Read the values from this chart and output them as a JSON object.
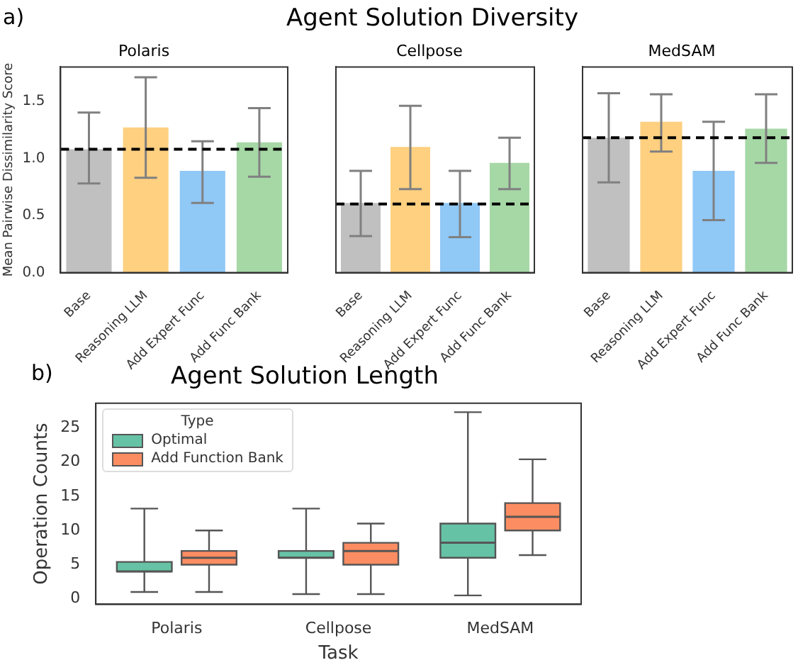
{
  "chart_data": [
    {
      "type": "bar",
      "annotations": [
        "a)",
        "Agent Solution Diversity"
      ],
      "title": "Polaris",
      "ylabel": "Mean Pairwise Dissimilarity Score",
      "categories": [
        "Base",
        "Reasoning LLM",
        "Add Expert Func",
        "Add Func Bank"
      ],
      "values": [
        1.08,
        1.27,
        0.89,
        1.14
      ],
      "colors": [
        "#c0c0c0",
        "#fed080",
        "#90c8f6",
        "#a6d8a6"
      ],
      "errors": [
        [
          0.78,
          1.4
        ],
        [
          0.83,
          1.71
        ],
        [
          0.61,
          1.15
        ],
        [
          0.84,
          1.44
        ]
      ],
      "ylim": [
        0,
        1.8
      ],
      "yticks": [
        {
          "value": 0,
          "label": "0.0"
        },
        {
          "value": 0.5,
          "label": "0.5"
        },
        {
          "value": 1,
          "label": "1.0"
        },
        {
          "value": 1.5,
          "label": "1.5"
        }
      ],
      "ref_lines": [
        {
          "axis": "y",
          "value": 1.08,
          "color": "#000000",
          "line_style": "dashed"
        }
      ]
    },
    {
      "type": "bar",
      "title": "Cellpose",
      "categories": [
        "Base",
        "Reasoning LLM",
        "Add Expert Func",
        "Add Func Bank"
      ],
      "values": [
        0.61,
        1.1,
        0.61,
        0.96
      ],
      "colors": [
        "#c0c0c0",
        "#fed080",
        "#90c8f6",
        "#a6d8a6"
      ],
      "errors": [
        [
          0.32,
          0.89
        ],
        [
          0.73,
          1.46
        ],
        [
          0.31,
          0.89
        ],
        [
          0.73,
          1.18
        ]
      ],
      "ylim": [
        0,
        1.8
      ],
      "yticks": [
        0,
        0.5,
        1,
        1.5
      ],
      "tick_labels": "x",
      "ref_lines": [
        {
          "axis": "y",
          "value": 0.6,
          "color": "#000000",
          "line_style": "dashed"
        }
      ]
    },
    {
      "type": "bar",
      "title": "MedSAM",
      "categories": [
        "Base",
        "Reasoning LLM",
        "Add Expert Func",
        "Add Func Bank"
      ],
      "values": [
        1.18,
        1.32,
        0.89,
        1.26
      ],
      "colors": [
        "#c0c0c0",
        "#fed080",
        "#90c8f6",
        "#a6d8a6"
      ],
      "errors": [
        [
          0.79,
          1.57
        ],
        [
          1.06,
          1.56
        ],
        [
          0.46,
          1.32
        ],
        [
          0.96,
          1.56
        ]
      ],
      "ylim": [
        0,
        1.8
      ],
      "yticks": [
        0,
        0.5,
        1,
        1.5
      ],
      "tick_labels": "x",
      "ref_lines": [
        {
          "axis": "y",
          "value": 1.18,
          "color": "#000000",
          "line_style": "dashed"
        }
      ]
    },
    {
      "type": "box",
      "annotations": [
        "b)"
      ],
      "title": "Agent Solution Length",
      "xlabel": "Task",
      "ylabel": "Operation Counts",
      "categories": [
        "Polaris",
        "Cellpose",
        "MedSAM"
      ],
      "legend_title": "Type",
      "legend": "top left",
      "ylim": [
        -0.8,
        28.6
      ],
      "yticks": [
        0,
        5,
        10,
        15,
        20,
        25
      ],
      "series": [
        {
          "name": "Optimal",
          "color": "#66c2a5",
          "boxes": [
            {
              "low": 1,
              "q1": 4,
              "median": 4,
              "q3": 5.4,
              "high": 13.2
            },
            {
              "low": 0.7,
              "q1": 6,
              "median": 6,
              "q3": 7,
              "high": 13.2
            },
            {
              "low": 0.5,
              "q1": 6,
              "median": 8.2,
              "q3": 11,
              "high": 27.3
            }
          ]
        },
        {
          "name": "Add Function Bank",
          "color": "#fc8d62",
          "boxes": [
            {
              "low": 1,
              "q1": 5,
              "median": 6,
              "q3": 7,
              "high": 10
            },
            {
              "low": 0.7,
              "q1": 5,
              "median": 7,
              "q3": 8.2,
              "high": 11
            },
            {
              "low": 6.4,
              "q1": 10,
              "median": 12,
              "q3": 14,
              "high": 20.4
            }
          ]
        }
      ]
    }
  ]
}
